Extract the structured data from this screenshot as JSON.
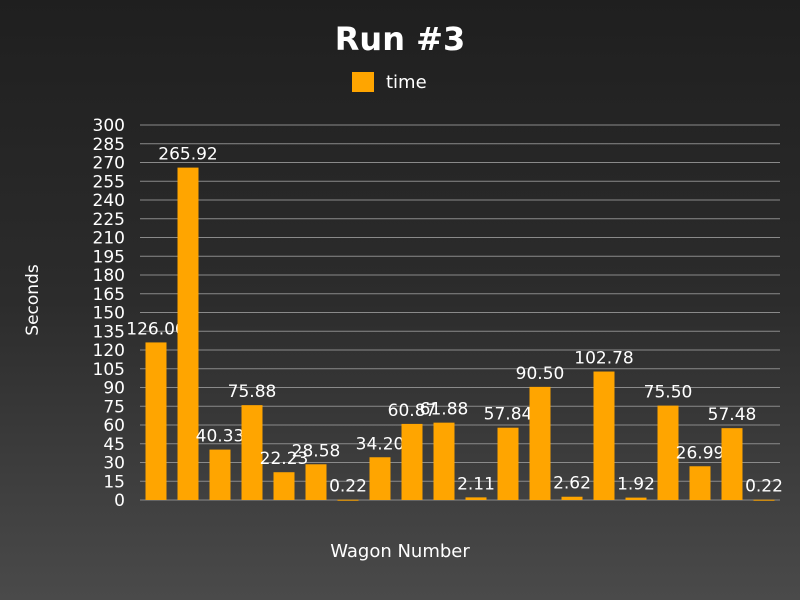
{
  "chart_data": {
    "type": "bar",
    "title": "Run #3",
    "xlabel": "Wagon Number",
    "ylabel": "Seconds",
    "ylim": [
      0,
      300
    ],
    "ytick_step": 15,
    "grid": true,
    "legend_position": "top",
    "series": [
      {
        "name": "time",
        "color": "#ffa500",
        "values": [
          126.06,
          265.92,
          40.33,
          75.88,
          22.23,
          28.58,
          0.22,
          34.2,
          60.87,
          61.88,
          2.11,
          57.84,
          90.5,
          2.62,
          102.78,
          1.92,
          75.5,
          26.99,
          57.48,
          0.22
        ],
        "labels": [
          "126.06",
          "265.92",
          "40.33",
          "75.88",
          "22.23",
          "28.58",
          "0.22",
          "34.20",
          "60.87",
          "61.88",
          "2.11",
          "57.84",
          "90.50",
          "2.62",
          "102.78",
          "1.92",
          "75.50",
          "26.99",
          "57.48",
          "0.22"
        ]
      }
    ],
    "yticks": [
      "0",
      "15",
      "30",
      "45",
      "60",
      "75",
      "90",
      "105",
      "120",
      "135",
      "150",
      "165",
      "180",
      "195",
      "210",
      "225",
      "240",
      "255",
      "270",
      "285",
      "300"
    ]
  },
  "colors": {
    "bar": "#ffa500",
    "grid": "#8a8a8a",
    "text": "#ffffff"
  }
}
